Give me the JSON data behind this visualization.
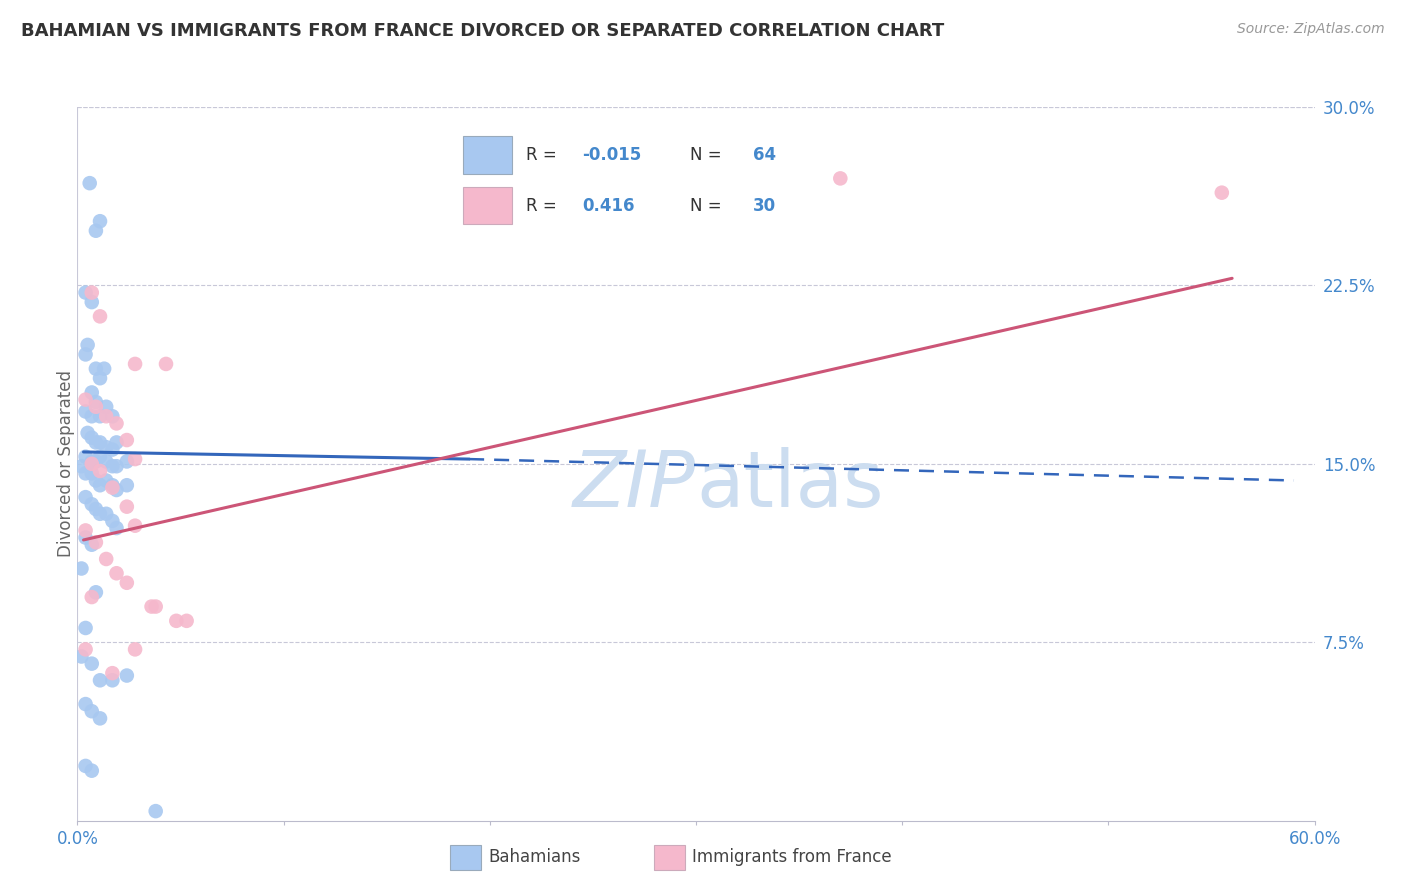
{
  "title": "BAHAMIAN VS IMMIGRANTS FROM FRANCE DIVORCED OR SEPARATED CORRELATION CHART",
  "source_text": "Source: ZipAtlas.com",
  "ylabel": "Divorced or Separated",
  "xlim": [
    0.0,
    0.6
  ],
  "ylim": [
    0.0,
    0.3
  ],
  "yticks": [
    0.075,
    0.15,
    0.225,
    0.3
  ],
  "ytick_labels": [
    "7.5%",
    "15.0%",
    "22.5%",
    "30.0%"
  ],
  "xtick_show": [
    0.0,
    0.6
  ],
  "xtick_labels": [
    "0.0%",
    "60.0%"
  ],
  "legend_blue_label": "Bahamians",
  "legend_pink_label": "Immigrants from France",
  "R_blue": -0.015,
  "N_blue": 64,
  "R_pink": 0.416,
  "N_pink": 30,
  "blue_color": "#a8c8f0",
  "pink_color": "#f5b8cc",
  "blue_line_color": "#3366bb",
  "pink_line_color": "#cc5577",
  "grid_color": "#c8c8d8",
  "title_color": "#333333",
  "axis_color": "#4488cc",
  "watermark_color": "#ccddf0",
  "blue_scatter": [
    [
      0.006,
      0.268
    ],
    [
      0.009,
      0.248
    ],
    [
      0.011,
      0.252
    ],
    [
      0.004,
      0.222
    ],
    [
      0.007,
      0.218
    ],
    [
      0.005,
      0.2
    ],
    [
      0.004,
      0.196
    ],
    [
      0.009,
      0.19
    ],
    [
      0.011,
      0.186
    ],
    [
      0.013,
      0.19
    ],
    [
      0.007,
      0.18
    ],
    [
      0.009,
      0.176
    ],
    [
      0.004,
      0.172
    ],
    [
      0.007,
      0.17
    ],
    [
      0.011,
      0.17
    ],
    [
      0.014,
      0.174
    ],
    [
      0.017,
      0.17
    ],
    [
      0.005,
      0.163
    ],
    [
      0.007,
      0.161
    ],
    [
      0.009,
      0.159
    ],
    [
      0.011,
      0.159
    ],
    [
      0.014,
      0.157
    ],
    [
      0.017,
      0.156
    ],
    [
      0.019,
      0.159
    ],
    [
      0.004,
      0.153
    ],
    [
      0.007,
      0.151
    ],
    [
      0.009,
      0.151
    ],
    [
      0.011,
      0.153
    ],
    [
      0.014,
      0.151
    ],
    [
      0.017,
      0.149
    ],
    [
      0.019,
      0.149
    ],
    [
      0.024,
      0.151
    ],
    [
      0.002,
      0.149
    ],
    [
      0.004,
      0.146
    ],
    [
      0.007,
      0.146
    ],
    [
      0.009,
      0.143
    ],
    [
      0.011,
      0.141
    ],
    [
      0.014,
      0.143
    ],
    [
      0.017,
      0.141
    ],
    [
      0.019,
      0.139
    ],
    [
      0.024,
      0.141
    ],
    [
      0.004,
      0.136
    ],
    [
      0.007,
      0.133
    ],
    [
      0.009,
      0.131
    ],
    [
      0.011,
      0.129
    ],
    [
      0.014,
      0.129
    ],
    [
      0.017,
      0.126
    ],
    [
      0.019,
      0.123
    ],
    [
      0.004,
      0.119
    ],
    [
      0.007,
      0.116
    ],
    [
      0.002,
      0.106
    ],
    [
      0.009,
      0.096
    ],
    [
      0.004,
      0.081
    ],
    [
      0.002,
      0.069
    ],
    [
      0.007,
      0.066
    ],
    [
      0.011,
      0.059
    ],
    [
      0.017,
      0.059
    ],
    [
      0.024,
      0.061
    ],
    [
      0.004,
      0.049
    ],
    [
      0.007,
      0.046
    ],
    [
      0.011,
      0.043
    ],
    [
      0.038,
      0.004
    ],
    [
      0.004,
      0.023
    ],
    [
      0.007,
      0.021
    ]
  ],
  "pink_scatter": [
    [
      0.37,
      0.27
    ],
    [
      0.555,
      0.264
    ],
    [
      0.007,
      0.222
    ],
    [
      0.011,
      0.212
    ],
    [
      0.028,
      0.192
    ],
    [
      0.043,
      0.192
    ],
    [
      0.004,
      0.177
    ],
    [
      0.009,
      0.174
    ],
    [
      0.014,
      0.17
    ],
    [
      0.019,
      0.167
    ],
    [
      0.024,
      0.16
    ],
    [
      0.028,
      0.152
    ],
    [
      0.007,
      0.15
    ],
    [
      0.011,
      0.147
    ],
    [
      0.017,
      0.14
    ],
    [
      0.024,
      0.132
    ],
    [
      0.028,
      0.124
    ],
    [
      0.004,
      0.122
    ],
    [
      0.009,
      0.117
    ],
    [
      0.014,
      0.11
    ],
    [
      0.019,
      0.104
    ],
    [
      0.024,
      0.1
    ],
    [
      0.007,
      0.094
    ],
    [
      0.038,
      0.09
    ],
    [
      0.036,
      0.09
    ],
    [
      0.048,
      0.084
    ],
    [
      0.053,
      0.084
    ],
    [
      0.004,
      0.072
    ],
    [
      0.028,
      0.072
    ],
    [
      0.017,
      0.062
    ]
  ],
  "blue_line_solid": [
    [
      0.003,
      0.155
    ],
    [
      0.19,
      0.152
    ]
  ],
  "blue_line_dash": [
    [
      0.19,
      0.152
    ],
    [
      0.59,
      0.143
    ]
  ],
  "pink_line": [
    [
      0.003,
      0.118
    ],
    [
      0.56,
      0.228
    ]
  ]
}
